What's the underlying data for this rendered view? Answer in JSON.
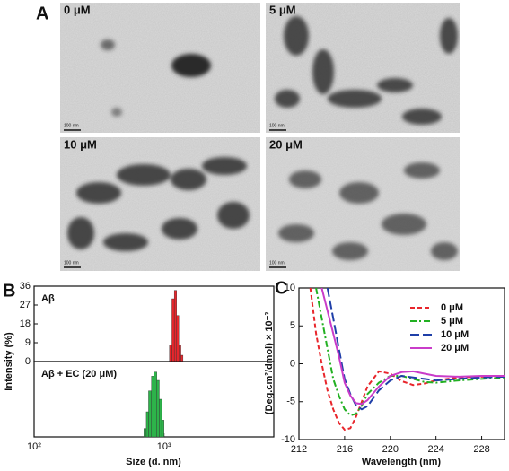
{
  "figure": {
    "panel_labels": [
      "A",
      "B",
      "C"
    ],
    "tem_images": [
      {
        "label": "0 μM",
        "scale_bar": "100 nm"
      },
      {
        "label": "5 μM",
        "scale_bar": "100 nm"
      },
      {
        "label": "10 μM",
        "scale_bar": "100 nm"
      },
      {
        "label": "20 μM",
        "scale_bar": "100 nm"
      }
    ]
  },
  "chart_data": [
    {
      "type": "histogram",
      "y_label": "Intensity (%)",
      "xscale": "log",
      "xlim": [
        100,
        7000
      ],
      "ylim": [
        0,
        36
      ],
      "yticks": [
        0,
        9,
        18,
        27,
        36
      ],
      "bins": [
        1100,
        1150,
        1200,
        1250,
        1300,
        1350,
        1400
      ],
      "series": [
        {
          "name": "Aβ",
          "color": "#e8262c",
          "values": [
            8,
            30,
            34,
            22,
            8,
            3
          ]
        }
      ]
    },
    {
      "type": "histogram",
      "x_label": "Size (d. nm)",
      "xscale": "log",
      "xlim": [
        100,
        7000
      ],
      "ylim": [
        0,
        36
      ],
      "xticks": [
        {
          "value": 100,
          "label": "10²"
        },
        {
          "value": 1000,
          "label": "10³"
        }
      ],
      "bins": [
        700,
        730,
        760,
        800,
        840,
        880,
        920,
        960,
        1000
      ],
      "series": [
        {
          "name": "Aβ + EC (20 μM)",
          "color": "#2db34a",
          "values": [
            4,
            12,
            22,
            29,
            31,
            27,
            18,
            8
          ]
        }
      ]
    },
    {
      "type": "line",
      "x_label": "Wavelength (nm)",
      "y_label": "(Deg.cm²/dmol) × 10⁻³",
      "xlim": [
        212,
        230
      ],
      "ylim": [
        -10,
        10
      ],
      "xticks": [
        212,
        216,
        220,
        224,
        228
      ],
      "yticks": [
        -10,
        -5,
        0,
        5,
        10
      ],
      "x": [
        213,
        213.5,
        214,
        214.5,
        215,
        215.5,
        216,
        216.5,
        217,
        217.5,
        218,
        219,
        220,
        221,
        222,
        223,
        224,
        226,
        228,
        230
      ],
      "series": [
        {
          "name": "0 μM",
          "color": "#e8262c",
          "dash": "dashed",
          "values": [
            10,
            4,
            0,
            -3.5,
            -6,
            -7.8,
            -8.7,
            -8.5,
            -7,
            -5,
            -3,
            -1,
            -1.3,
            -2.3,
            -2.8,
            -2.6,
            -2.2,
            -1.8,
            -1.7,
            -1.7
          ]
        },
        {
          "name": "5 μM",
          "color": "#22b022",
          "dash": "dashdot",
          "values": [
            null,
            10,
            6,
            2,
            -2,
            -4.2,
            -6,
            -6.8,
            -6.6,
            -5.5,
            -4,
            -2.5,
            -1.6,
            -1.6,
            -2,
            -2.4,
            -2.5,
            -2.2,
            -2,
            -1.8
          ]
        },
        {
          "name": "10 μM",
          "color": "#1f3fa8",
          "dash": "longdash",
          "values": [
            null,
            null,
            null,
            10,
            6,
            2,
            -2,
            -4,
            -5.5,
            -6,
            -5.6,
            -3.5,
            -2.2,
            -1.6,
            -1.8,
            -2,
            -2.2,
            -2,
            -1.8,
            -1.7
          ]
        },
        {
          "name": "20 μM",
          "color": "#c93cc9",
          "dash": "solid",
          "values": [
            null,
            null,
            10,
            7,
            4,
            1,
            -2.5,
            -4.2,
            -5.2,
            -5.3,
            -4.8,
            -3,
            -1.6,
            -1.1,
            -1.0,
            -1.3,
            -1.6,
            -1.7,
            -1.6,
            -1.6
          ]
        }
      ],
      "legend": "upper right"
    }
  ]
}
